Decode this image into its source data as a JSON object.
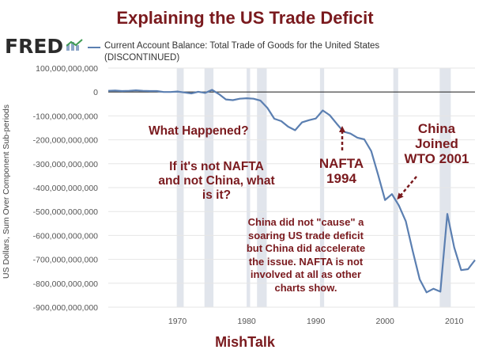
{
  "header": {
    "title": "Explaining the US Trade Deficit",
    "logo_text": "FRED"
  },
  "legend": {
    "label": "Current Account Balance: Total Trade of Goods for the United States",
    "note": "(DISCONTINUED)"
  },
  "footer": {
    "text": "MishTalk"
  },
  "annotations": {
    "what_happened": "What Happened?",
    "if_not_line1": "If it's not NAFTA",
    "if_not_line2": "and not China, what",
    "if_not_line3": "is it?",
    "nafta_line1": "NAFTA",
    "nafta_line2": "1994",
    "china_line1": "China",
    "china_line2": "Joined",
    "china_line3": "WTO 2001",
    "note_line1": "China did not \"cause\" a",
    "note_line2": "soaring US trade deficit",
    "note_line3": "but China did accelerate",
    "note_line4": "the issue. NAFTA is not",
    "note_line5": "involved at all as other",
    "note_line6": "charts show."
  },
  "colors": {
    "line": "#5b7fb1",
    "recession": "#e1e5ec",
    "title": "#7a1a1e",
    "zero_line": "#333333"
  },
  "chart_data": {
    "type": "line",
    "title": "Explaining the US Trade Deficit",
    "xlabel": "",
    "ylabel": "US Dollars, Sum Over Component Sub-periods",
    "series": [
      {
        "name": "Current Account Balance: Total Trade of Goods for the United States",
        "x": [
          1960,
          1961,
          1962,
          1963,
          1964,
          1965,
          1966,
          1967,
          1968,
          1969,
          1970,
          1971,
          1972,
          1973,
          1974,
          1975,
          1976,
          1977,
          1978,
          1979,
          1980,
          1981,
          1982,
          1983,
          1984,
          1985,
          1986,
          1987,
          1988,
          1989,
          1990,
          1991,
          1992,
          1993,
          1994,
          1995,
          1996,
          1997,
          1998,
          1999,
          2000,
          2001,
          2002,
          2003,
          2004,
          2005,
          2006,
          2007,
          2008,
          2009,
          2010,
          2011,
          2012,
          2013
        ],
        "values": [
          5000000000,
          6000000000,
          4000000000,
          5000000000,
          7000000000,
          5000000000,
          4000000000,
          4000000000,
          0,
          0,
          2000000000,
          -2000000000,
          -6000000000,
          1000000000,
          -4000000000,
          9000000000,
          -9000000000,
          -31000000000,
          -34000000000,
          -28000000000,
          -26000000000,
          -28000000000,
          -36000000000,
          -67000000000,
          -112000000000,
          -122000000000,
          -145000000000,
          -160000000000,
          -127000000000,
          -118000000000,
          -111000000000,
          -77000000000,
          -97000000000,
          -132000000000,
          -166000000000,
          -174000000000,
          -191000000000,
          -198000000000,
          -247000000000,
          -346000000000,
          -452000000000,
          -427000000000,
          -475000000000,
          -541000000000,
          -665000000000,
          -783000000000,
          -838000000000,
          -823000000000,
          -835000000000,
          -510000000000,
          -650000000000,
          -745000000000,
          -741000000000,
          -703000000000
        ]
      }
    ],
    "x_ticks": [
      1970,
      1980,
      1990,
      2000,
      2010
    ],
    "y_ticks": [
      100000000000,
      0,
      -100000000000,
      -200000000000,
      -300000000000,
      -400000000000,
      -500000000000,
      -600000000000,
      -700000000000,
      -800000000000,
      -900000000000
    ],
    "y_tick_labels": [
      "100,000,000,000",
      "0",
      "-100,000,000,000",
      "-200,000,000,000",
      "-300,000,000,000",
      "-400,000,000,000",
      "-500,000,000,000",
      "-600,000,000,000",
      "-700,000,000,000",
      "-800,000,000,000",
      "-900,000,000,000"
    ],
    "xlim": [
      1960,
      2013
    ],
    "ylim": [
      -900000000000,
      100000000000
    ],
    "grid": true,
    "recessions": [
      [
        1969.9,
        1970.9
      ],
      [
        1973.9,
        1975.2
      ],
      [
        1980.0,
        1980.5
      ],
      [
        1981.5,
        1982.9
      ],
      [
        1990.6,
        1991.2
      ],
      [
        2001.2,
        2001.9
      ],
      [
        2007.9,
        2009.5
      ]
    ]
  }
}
